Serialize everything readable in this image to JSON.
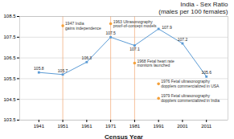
{
  "chart_data": {
    "type": "line",
    "title": "India - Sex Ratio\n(males per 100 females)",
    "xlabel": "Census Year",
    "x": [
      1941,
      1951,
      1961,
      1971,
      1981,
      1991,
      2001,
      2011
    ],
    "values": [
      105.8,
      105.7,
      106.3,
      107.5,
      107.1,
      107.9,
      107.2,
      105.6
    ],
    "color": "#5b9bd5",
    "marker": "square",
    "xlim": [
      1933,
      2020
    ],
    "xticks": [
      1941,
      1951,
      1961,
      1971,
      1981,
      1991,
      2001,
      2011
    ],
    "ylim": [
      103.5,
      108.5
    ],
    "yticks": [
      103.5,
      104.5,
      105.5,
      106.5,
      107.5,
      108.5
    ],
    "grid": true,
    "data_labels": true,
    "reference_lines": {
      "x": [
        1951,
        1971,
        1981
      ],
      "color": "#f4b183"
    },
    "annotations": [
      {
        "x": 1951,
        "y": 108.05,
        "text": "1947 India\ngains independence",
        "color": "#f4a03a"
      },
      {
        "x": 1971,
        "y": 108.15,
        "text": "1963 Ultrasonography\nproof-of-concept models",
        "color": "#f4a03a"
      },
      {
        "x": 1981,
        "y": 106.25,
        "text": "1968 Fetal heart rate\nmonitors launched",
        "color": "#f4a03a"
      },
      {
        "x": 1991,
        "y": 105.25,
        "text": "1976 Fetal ultrasonography\ndopplers commercialized in USA",
        "color": "#f4a03a"
      },
      {
        "x": 1991,
        "y": 104.55,
        "text": "1979 Fetal ultrasonography\ndopplers commercialized in India",
        "color": "#f4a03a"
      }
    ]
  }
}
